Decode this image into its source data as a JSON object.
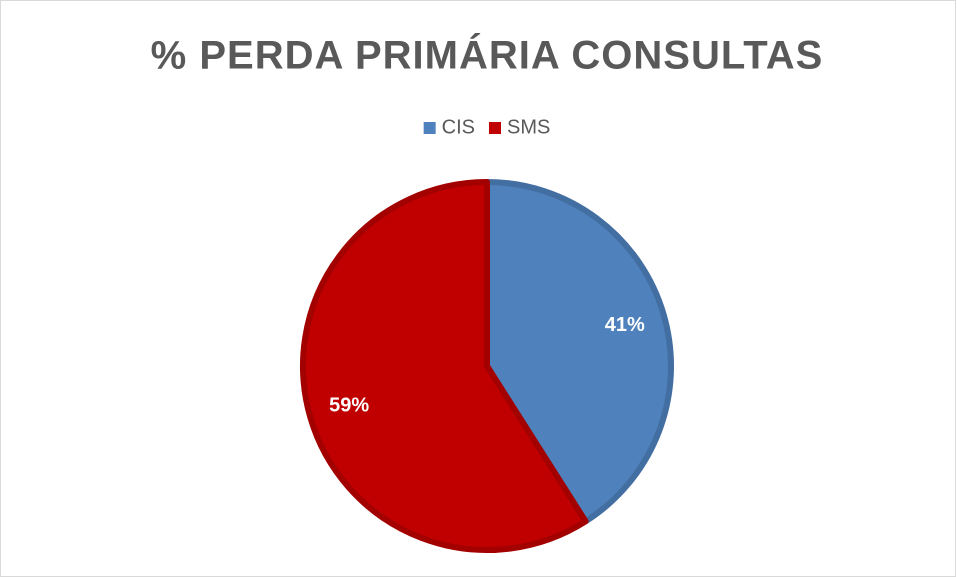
{
  "chart_data": {
    "type": "pie",
    "title": "% PERDA PRIMÁRIA CONSULTAS",
    "categories": [
      "CIS",
      "SMS"
    ],
    "values": [
      41,
      59
    ],
    "value_labels": [
      "41%",
      "59%"
    ],
    "colors": [
      "#4f81bd",
      "#c00000"
    ],
    "legend": "top"
  }
}
